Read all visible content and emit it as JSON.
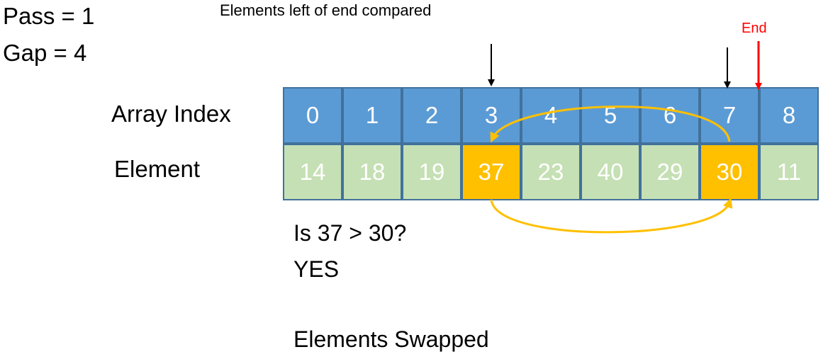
{
  "pass": "Pass = 1",
  "gap": "Gap = 4",
  "caption": "Elements left of end compared",
  "end_label": "End",
  "row_labels": {
    "index": "Array Index",
    "element": "Element"
  },
  "indices": [
    "0",
    "1",
    "2",
    "3",
    "4",
    "5",
    "6",
    "7",
    "8"
  ],
  "elements": [
    "14",
    "18",
    "19",
    "37",
    "23",
    "40",
    "29",
    "30",
    "11"
  ],
  "highlighted_indices": [
    3,
    7
  ],
  "question": "Is 37 > 30?",
  "answer": "YES",
  "result": "Elements Swapped",
  "colors": {
    "index_cell": "#5b9bd5",
    "element_cell": "#c5e0b4",
    "highlight_cell": "#ffc000",
    "cell_border": "#41719c",
    "swap_arrow": "#ffc000",
    "end_arrow": "#ff0000",
    "compare_arrow": "#000000"
  }
}
